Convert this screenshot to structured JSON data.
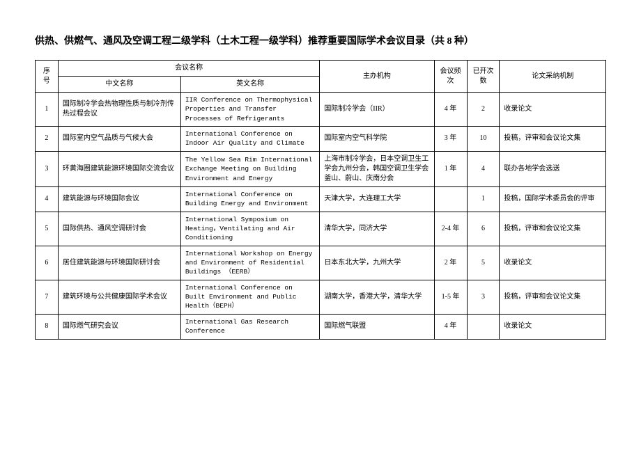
{
  "title": "供热、供燃气、通风及空调工程二级学科（土木工程一级学科）推荐重要国际学术会议目录（共 8 种）",
  "headers": {
    "num": "序号",
    "conf_name": "会议名称",
    "cn_name": "中文名称",
    "en_name": "英文名称",
    "host": "主办机构",
    "freq": "会议频次",
    "count": "已开次数",
    "mech": "论文采纳机制"
  },
  "rows": [
    {
      "num": "1",
      "cn": "国际制冷学会热物理性质与制冷剂传热过程会议",
      "en": "IIR Conference on Thermophysical Properties and Transfer Processes of Refrigerants",
      "host": "国际制冷学会（IIR）",
      "freq": "4 年",
      "count": "2",
      "mech": "收录论文"
    },
    {
      "num": "2",
      "cn": "国际室内空气品质与气候大会",
      "en": "International Conference on Indoor Air Quality and Climate",
      "host": "国际室内空气科学院",
      "freq": "3 年",
      "count": "10",
      "mech": "投稿，评审和会议论文集"
    },
    {
      "num": "3",
      "cn": "环黄海圈建筑能源环境国际交流会议",
      "en": "The Yellow Sea Rim International Exchange Meeting on Building Environment and Energy",
      "host": "上海市制冷学会，日本空调卫生工学会九州分会，韩国空调卫生学会釜山、蔚山、庆南分会",
      "freq": "1 年",
      "count": "4",
      "mech": "联办各地学会选送"
    },
    {
      "num": "4",
      "cn": "建筑能源与环境国际会议",
      "en": "International Conference on Building Energy and Environment",
      "host": "天津大学，大连理工大学",
      "freq": "",
      "count": "1",
      "mech": "投稿，国际学术委员会的评审"
    },
    {
      "num": "5",
      "cn": "国际供热、通风空调研讨会",
      "en": "International Symposium on Heating，Ventilating and Air Conditioning",
      "host": "清华大学，同济大学",
      "freq": "2-4 年",
      "count": "6",
      "mech": "投稿，评审和会议论文集"
    },
    {
      "num": "6",
      "cn": "居住建筑能源与环境国际研讨会",
      "en": "International Workshop on Energy and Environment of Residential Buildings （EERB）",
      "host": "日本东北大学，九州大学",
      "freq": "2 年",
      "count": "5",
      "mech": "收录论文"
    },
    {
      "num": "7",
      "cn": "建筑环境与公共健康国际学术会议",
      "en": "International Conference on Built Environment and Public Health（BEPH）",
      "host": "湖南大学，香港大学，清华大学",
      "freq": "1-5 年",
      "count": "3",
      "mech": "投稿，评审和会议论文集"
    },
    {
      "num": "8",
      "cn": "国际燃气研究会议",
      "en": "International Gas Research Conference",
      "host": "国际燃气联盟",
      "freq": "4 年",
      "count": "",
      "mech": "收录论文"
    }
  ]
}
